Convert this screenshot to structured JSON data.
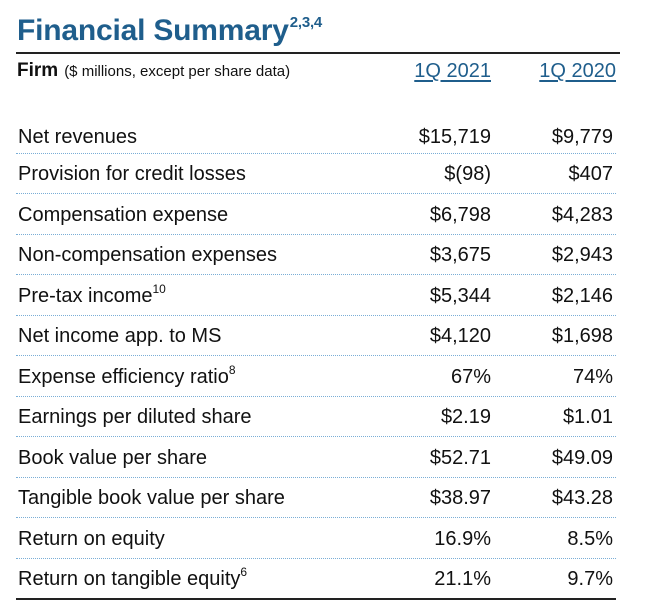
{
  "title": "Financial Summary",
  "title_sup": "2,3,4",
  "header": {
    "firm": "Firm",
    "units": "($ millions, except per share data)",
    "col1": "1Q 2021",
    "col2": "1Q 2020"
  },
  "rows": [
    {
      "label": "Net revenues",
      "sup": "",
      "v1": "$15,719",
      "v2": "$9,779"
    },
    {
      "label": "Provision for credit losses",
      "sup": "",
      "v1": "$(98)",
      "v2": "$407"
    },
    {
      "label": "Compensation expense",
      "sup": "",
      "v1": "$6,798",
      "v2": "$4,283"
    },
    {
      "label": "Non-compensation expenses",
      "sup": "",
      "v1": "$3,675",
      "v2": "$2,943"
    },
    {
      "label": "Pre-tax income",
      "sup": "10",
      "v1": "$5,344",
      "v2": "$2,146"
    },
    {
      "label": "Net income app. to MS",
      "sup": "",
      "v1": "$4,120",
      "v2": "$1,698"
    },
    {
      "label": "Expense efficiency ratio",
      "sup": "8",
      "v1": "67%",
      "v2": "74%"
    },
    {
      "label": "Earnings per diluted share",
      "sup": "",
      "v1": "$2.19",
      "v2": "$1.01"
    },
    {
      "label": "Book value per share",
      "sup": "",
      "v1": "$52.71",
      "v2": "$49.09"
    },
    {
      "label": "Tangible book value per share",
      "sup": "",
      "v1": "$38.97",
      "v2": "$43.28"
    },
    {
      "label": "Return on equity",
      "sup": "",
      "v1": "16.9%",
      "v2": "8.5%"
    },
    {
      "label": "Return on tangible equity",
      "sup": "6",
      "v1": "21.1%",
      "v2": "9.7%"
    }
  ],
  "colors": {
    "title": "#1f5e8c",
    "row_divider": "#7aaed6",
    "rule": "#222222"
  }
}
